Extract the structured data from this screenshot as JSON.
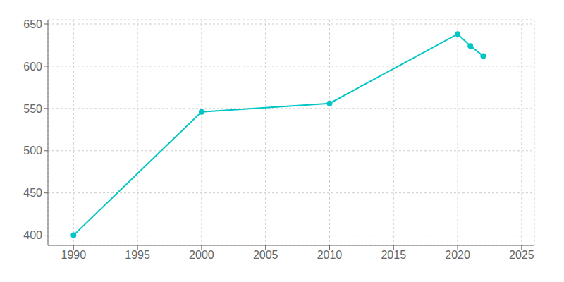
{
  "chart_data": {
    "type": "line",
    "x": [
      1990,
      2000,
      2010,
      2020,
      2021,
      2022
    ],
    "values": [
      400,
      546,
      556,
      638,
      624,
      612
    ],
    "color": "#00C5C5",
    "marker": "circle",
    "xlim": [
      1988,
      2026
    ],
    "ylim": [
      388,
      655
    ],
    "xticks": [
      1990,
      1995,
      2000,
      2005,
      2010,
      2015,
      2020,
      2025
    ],
    "yticks": [
      400,
      450,
      500,
      550,
      600,
      650
    ],
    "grid": true
  }
}
